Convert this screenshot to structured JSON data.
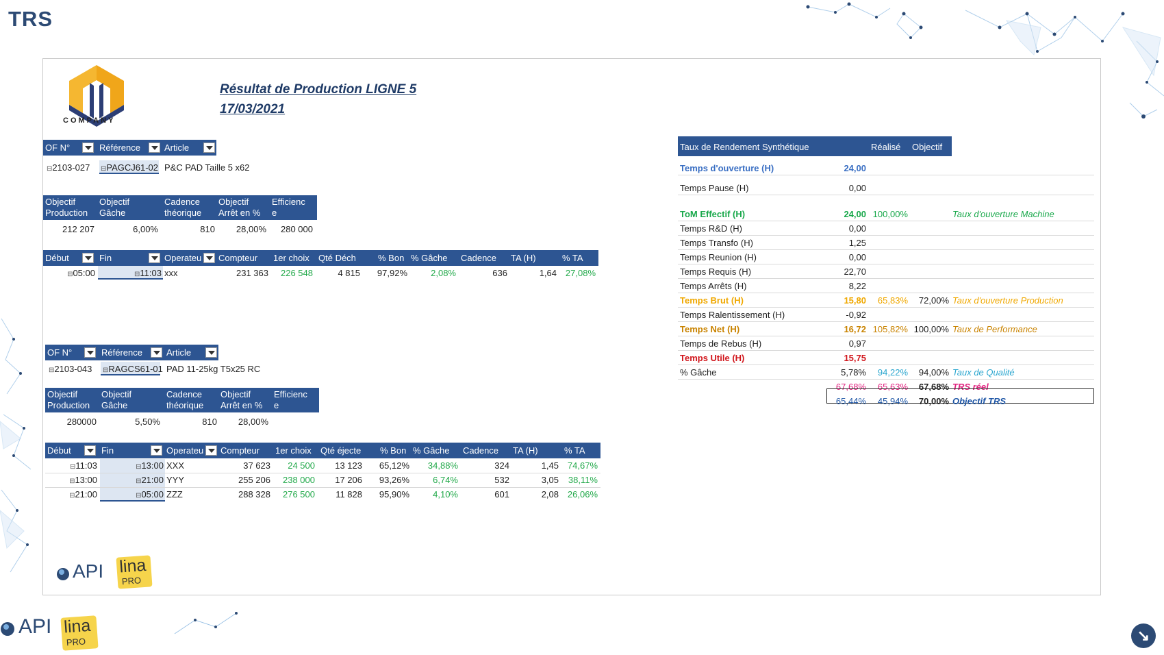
{
  "page": {
    "title": "TRS"
  },
  "sheet": {
    "company": "COMPANY",
    "title_line1": "Résultat de Production LIGNE 5",
    "title_line2": "17/03/2021"
  },
  "block1": {
    "of_headers": [
      "OF N°",
      "Référence",
      "Article"
    ],
    "of_row": {
      "of": "2103-027",
      "ref": "PAGCJ61-02",
      "article": "P&C PAD Taille 5 x62"
    },
    "obj_headers": [
      [
        "Objectif",
        "Production"
      ],
      [
        "Objectif",
        "Gâche"
      ],
      [
        "Cadence",
        "théorique"
      ],
      [
        "Objectif",
        "Arrêt en %"
      ],
      [
        "Efficienc",
        "e"
      ]
    ],
    "obj_row": [
      "212 207",
      "6,00%",
      "810",
      "28,00%",
      "280 000"
    ],
    "prod_headers": [
      "Début",
      "Fin",
      "Operateu",
      "Compteur",
      "1er choix",
      "Qté Déch",
      "% Bon",
      "% Gâche",
      "Cadence",
      "TA (H)",
      "% TA"
    ],
    "prod_rows": [
      [
        "05:00",
        "11:03",
        "xxx",
        "231 363",
        "226 548",
        "4 815",
        "97,92%",
        "2,08%",
        "636",
        "1,64",
        "27,08%"
      ]
    ]
  },
  "block2": {
    "of_headers": [
      "OF N°",
      "Référence",
      "Article"
    ],
    "of_row": {
      "of": "2103-043",
      "ref": "RAGCS61-01",
      "article": "PAD 11-25kg T5x25 RC"
    },
    "obj_headers": [
      [
        "Objectif",
        "Production"
      ],
      [
        "Objectif",
        "Gâche"
      ],
      [
        "Cadence",
        "théorique"
      ],
      [
        "Objectif",
        "Arrêt en %"
      ],
      [
        "Efficienc",
        "e"
      ]
    ],
    "obj_row": [
      "280000",
      "5,50%",
      "810",
      "28,00%",
      ""
    ],
    "prod_headers": [
      "Début",
      "Fin",
      "Operateu",
      "Compteur",
      "1er choix",
      "Qté éjecte",
      "% Bon",
      "% Gâche",
      "Cadence",
      "TA (H)",
      "% TA"
    ],
    "prod_rows": [
      [
        "11:03",
        "13:00",
        "XXX",
        "37 623",
        "24 500",
        "13 123",
        "65,12%",
        "34,88%",
        "324",
        "1,45",
        "74,67%"
      ],
      [
        "13:00",
        "21:00",
        "YYY",
        "255 206",
        "238 000",
        "17 206",
        "93,26%",
        "6,74%",
        "532",
        "3,05",
        "38,11%"
      ],
      [
        "21:00",
        "05:00",
        "ZZZ",
        "288 328",
        "276 500",
        "11 828",
        "95,90%",
        "4,10%",
        "601",
        "2,08",
        "26,06%"
      ]
    ]
  },
  "trs": {
    "header": {
      "label": "Taux de Rendement Synthétique",
      "realise": "Réalisé",
      "objectif": "Objectif"
    },
    "rows": [
      {
        "label": "Temps d'ouverture (H)",
        "value": "24,00",
        "pct": "",
        "obj": "",
        "note": ""
      },
      {
        "label": "Temps Pause (H)",
        "value": "0,00",
        "pct": "",
        "obj": "",
        "note": ""
      },
      {
        "label": "ToM Effectif (H)",
        "value": "24,00",
        "pct": "100,00%",
        "obj": "",
        "note": "Taux d'ouverture Machine"
      },
      {
        "label": "Temps R&D (H)",
        "value": "0,00",
        "pct": "",
        "obj": "",
        "note": ""
      },
      {
        "label": "Temps Transfo (H)",
        "value": "1,25",
        "pct": "",
        "obj": "",
        "note": ""
      },
      {
        "label": "Temps Reunion (H)",
        "value": "0,00",
        "pct": "",
        "obj": "",
        "note": ""
      },
      {
        "label": "Temps Requis (H)",
        "value": "22,70",
        "pct": "",
        "obj": "",
        "note": ""
      },
      {
        "label": "Temps Arrêts (H)",
        "value": "8,22",
        "pct": "",
        "obj": "",
        "note": ""
      },
      {
        "label": "Temps Brut (H)",
        "value": "15,80",
        "pct": "65,83%",
        "obj": "72,00%",
        "note": "Taux d'ouverture Production"
      },
      {
        "label": "Temps Ralentissement (H)",
        "value": "-0,92",
        "pct": "",
        "obj": "",
        "note": ""
      },
      {
        "label": "Temps Net (H)",
        "value": "16,72",
        "pct": "105,82%",
        "obj": "100,00%",
        "note": "Taux de Performance"
      },
      {
        "label": "Temps de Rebus (H)",
        "value": "0,97",
        "pct": "",
        "obj": "",
        "note": ""
      },
      {
        "label": "Temps Utile (H)",
        "value": "15,75",
        "pct": "",
        "obj": "",
        "note": ""
      },
      {
        "label": "% Gâche",
        "value": "5,78%",
        "pct": "94,22%",
        "obj": "94,00%",
        "note": "Taux de Qualité"
      },
      {
        "label": "",
        "value": "67,68%",
        "pct": "65,63%",
        "obj": "67,68%",
        "note": "TRS réel"
      },
      {
        "label": "",
        "value": "65,44%",
        "pct": "45,94%",
        "obj": "70,00%",
        "note": "Objectif TRS"
      }
    ]
  },
  "logos": {
    "api": "API",
    "lina": "lina",
    "pro": "PRO"
  },
  "nav": {
    "icon": "arrow-down-right-icon"
  }
}
